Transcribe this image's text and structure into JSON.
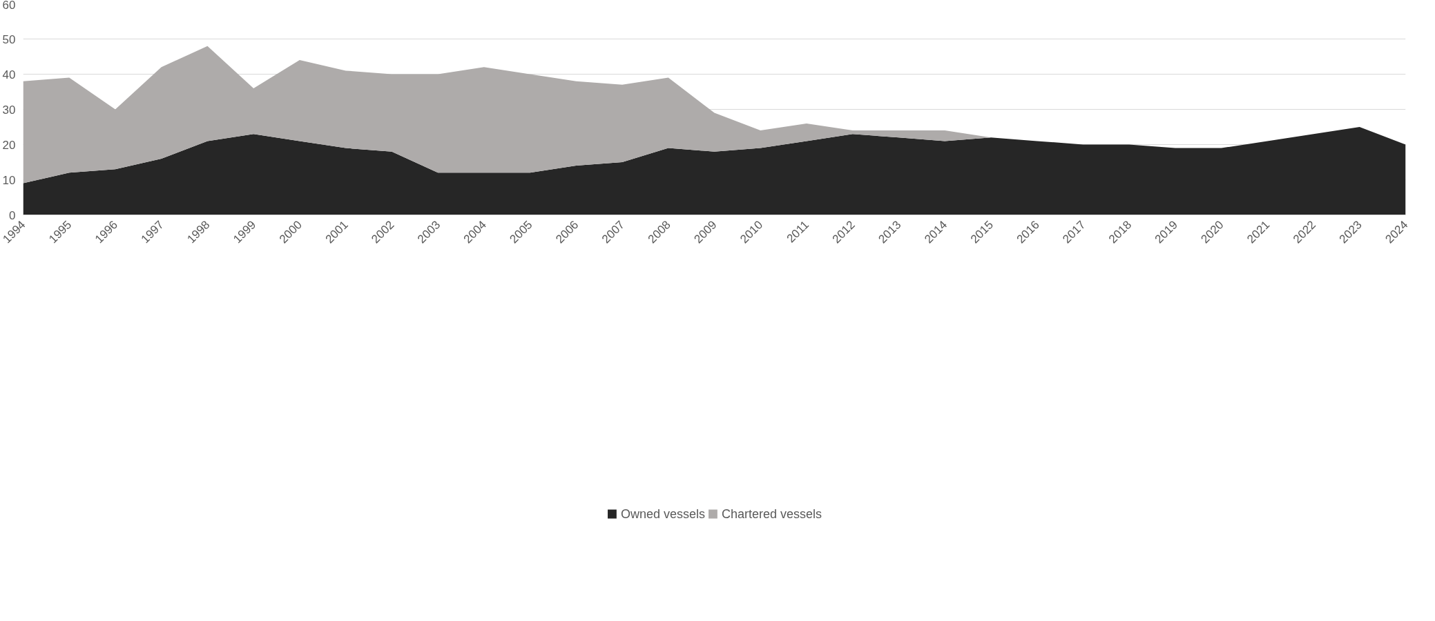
{
  "chart_data": {
    "type": "area",
    "stacked": true,
    "categories": [
      "1994",
      "1995",
      "1996",
      "1997",
      "1998",
      "1999",
      "2000",
      "2001",
      "2002",
      "2003",
      "2004",
      "2005",
      "2006",
      "2007",
      "2008",
      "2009",
      "2010",
      "2011",
      "2012",
      "2013",
      "2014",
      "2015",
      "2016",
      "2017",
      "2018",
      "2019",
      "2020",
      "2021",
      "2022",
      "2023",
      "2024"
    ],
    "series": [
      {
        "name": "Owned vessels",
        "color": "#262626",
        "values": [
          9,
          12,
          13,
          16,
          21,
          23,
          21,
          19,
          18,
          12,
          12,
          12,
          14,
          15,
          19,
          18,
          19,
          21,
          23,
          22,
          21,
          22,
          21,
          20,
          20,
          19,
          19,
          21,
          23,
          25,
          20
        ]
      },
      {
        "name": "Chartered vessels",
        "color": "#aeabaa",
        "values": [
          29,
          27,
          17,
          26,
          27,
          13,
          23,
          22,
          22,
          28,
          30,
          28,
          24,
          22,
          20,
          11,
          5,
          5,
          1,
          2,
          3,
          0,
          0,
          0,
          0,
          0,
          0,
          0,
          0,
          0,
          0
        ]
      }
    ],
    "ylim": [
      0,
      60
    ],
    "yticks": [
      0,
      10,
      20,
      30,
      40,
      50,
      60
    ],
    "grid": "y",
    "legend": "bottom"
  }
}
